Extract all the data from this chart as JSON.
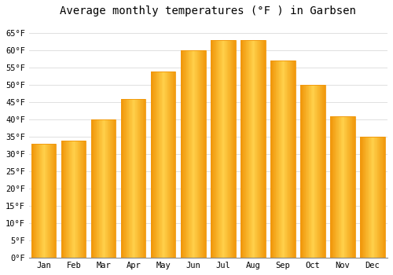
{
  "title": "Average monthly temperatures (°F ) in Garbsen",
  "months": [
    "Jan",
    "Feb",
    "Mar",
    "Apr",
    "May",
    "Jun",
    "Jul",
    "Aug",
    "Sep",
    "Oct",
    "Nov",
    "Dec"
  ],
  "values": [
    33,
    34,
    40,
    46,
    54,
    60,
    63,
    63,
    57,
    50,
    41,
    35
  ],
  "bar_color_center": "#FFD04A",
  "bar_color_edge": "#F0960A",
  "background_color": "#FFFFFF",
  "grid_color": "#E0E0E0",
  "ylim": [
    0,
    68
  ],
  "ytick_step": 5,
  "title_fontsize": 10,
  "tick_fontsize": 7.5,
  "font_family": "monospace",
  "figsize": [
    5.0,
    3.5
  ],
  "dpi": 100
}
